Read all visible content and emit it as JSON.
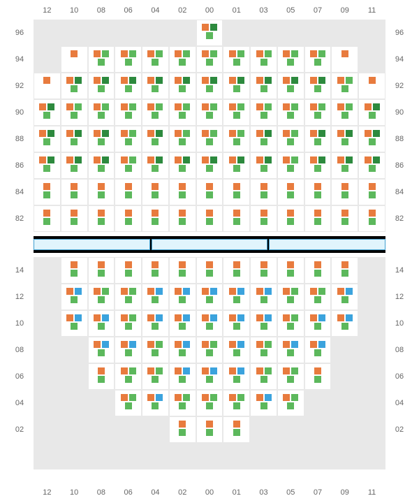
{
  "colors": {
    "o": "#e87b3e",
    "dg": "#2d8a3e",
    "g": "#5cb85c",
    "b": "#3ba3dd",
    "grid": "#e8e8e8",
    "cell": "#ffffff",
    "divider_border": "#40a0d0",
    "divider_fill": "#e0f4fc"
  },
  "columns": [
    "12",
    "10",
    "08",
    "06",
    "04",
    "02",
    "00",
    "01",
    "03",
    "05",
    "07",
    "09",
    "11"
  ],
  "upper": {
    "rows": [
      "96",
      "94",
      "92",
      "90",
      "88",
      "86",
      "84",
      "82"
    ],
    "cells": [
      [
        "",
        "",
        "",
        "",
        "",
        "",
        "odg.g",
        "",
        "",
        "",
        "",
        "",
        ""
      ],
      [
        "",
        "o",
        "og.g",
        "og.g",
        "og.g",
        "og.g",
        "og.g",
        "og.g",
        "og.g",
        "og.g",
        "og.g",
        "o",
        ""
      ],
      [
        "o",
        "odg.g",
        "odg.g",
        "odg.g",
        "odg.g",
        "odg.g",
        "odg.g",
        "odg.g",
        "odg.g",
        "odg.g",
        "odg.g",
        "og.g",
        "o"
      ],
      [
        "odg.g",
        "og.g",
        "og.g",
        "og.g",
        "og.g",
        "og.g",
        "og.g",
        "og.g",
        "og.g",
        "og.g",
        "og.g",
        "og.g",
        "odg.g"
      ],
      [
        "odg.g",
        "odg.g",
        "odg.g",
        "og.g",
        "odg.g",
        "og.g",
        "og.g",
        "og.g",
        "odg.g",
        "og.g",
        "odg.g",
        "odg.g",
        "odg.g"
      ],
      [
        "odg.g",
        "odg.g",
        "odg.g",
        "og.g",
        "odg.g",
        "odg.g",
        "odg.g",
        "odg.g",
        "odg.g",
        "og.g",
        "odg.g",
        "odg.g",
        "odg.g"
      ],
      [
        "o.g",
        "o.g",
        "o.g",
        "o.g",
        "o.g",
        "o.g",
        "o.g",
        "o.g",
        "o.g",
        "o.g",
        "o.g",
        "o.g",
        "o.g"
      ],
      [
        "o.g",
        "o.g",
        "o.g",
        "o.g",
        "o.g",
        "o.g",
        "o.g",
        "o.g",
        "o.g",
        "o.g",
        "o.g",
        "o.g",
        "o.g"
      ]
    ]
  },
  "lower": {
    "rows": [
      "14",
      "12",
      "10",
      "08",
      "06",
      "04",
      "02"
    ],
    "cells": [
      [
        "",
        "o.g",
        "o.g",
        "o.g",
        "o.g",
        "o.g",
        "o.g",
        "o.g",
        "o.g",
        "o.g",
        "o.g",
        "o.g",
        ""
      ],
      [
        "",
        "ob.g",
        "og.g",
        "og.g",
        "ob.g",
        "ob.g",
        "ob.g",
        "ob.g",
        "ob.g",
        "og.g",
        "og.g",
        "ob.g",
        ""
      ],
      [
        "",
        "ob.g",
        "ob.g",
        "og.g",
        "ob.g",
        "ob.g",
        "ob.g",
        "ob.g",
        "ob.g",
        "og.g",
        "ob.g",
        "ob.g",
        ""
      ],
      [
        "",
        "",
        "ob.g",
        "ob.g",
        "og.g",
        "ob.g",
        "og.g",
        "ob.g",
        "og.g",
        "ob.g",
        "ob.g",
        "",
        ""
      ],
      [
        "",
        "",
        "o.g",
        "og.g",
        "og.g",
        "ob.g",
        "ob.g",
        "ob.g",
        "og.g",
        "og.g",
        "o.g",
        "",
        ""
      ],
      [
        "",
        "",
        "",
        "og.g",
        "ob.g",
        "og.g",
        "og.g",
        "og.g",
        "ob.g",
        "og.g",
        "",
        "",
        ""
      ],
      [
        "",
        "",
        "",
        "",
        "",
        "o.g",
        "o.g",
        "o.g",
        "",
        "",
        "",
        "",
        ""
      ]
    ]
  }
}
